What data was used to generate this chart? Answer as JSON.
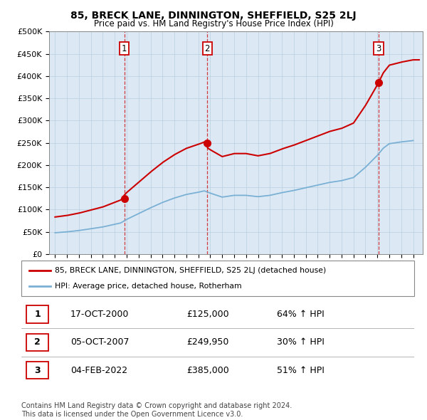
{
  "title": "85, BRECK LANE, DINNINGTON, SHEFFIELD, S25 2LJ",
  "subtitle": "Price paid vs. HM Land Registry's House Price Index (HPI)",
  "ylim": [
    0,
    500000
  ],
  "yticks": [
    0,
    50000,
    100000,
    150000,
    200000,
    250000,
    300000,
    350000,
    400000,
    450000,
    500000
  ],
  "ytick_labels": [
    "£0",
    "£50K",
    "£100K",
    "£150K",
    "£200K",
    "£250K",
    "£300K",
    "£350K",
    "£400K",
    "£450K",
    "£500K"
  ],
  "sale_prices": [
    125000,
    249950,
    385000
  ],
  "sale_labels": [
    "1",
    "2",
    "3"
  ],
  "sale_years": [
    2000.8,
    2007.75,
    2022.1
  ],
  "red_color": "#cc0000",
  "blue_color": "#7ab0d4",
  "legend_label_red": "85, BRECK LANE, DINNINGTON, SHEFFIELD, S25 2LJ (detached house)",
  "legend_label_blue": "HPI: Average price, detached house, Rotherham",
  "footer": "Contains HM Land Registry data © Crown copyright and database right 2024.\nThis data is licensed under the Open Government Licence v3.0.",
  "table_rows": [
    [
      "1",
      "17-OCT-2000",
      "£125,000",
      "64% ↑ HPI"
    ],
    [
      "2",
      "05-OCT-2007",
      "£249,950",
      "30% ↑ HPI"
    ],
    [
      "3",
      "04-FEB-2022",
      "£385,000",
      "51% ↑ HPI"
    ]
  ],
  "hpi_x": [
    1995.0,
    1996.0,
    1997.0,
    1998.0,
    1999.0,
    2000.0,
    2000.5,
    2001.0,
    2002.0,
    2003.0,
    2004.0,
    2005.0,
    2006.0,
    2007.0,
    2007.5,
    2008.0,
    2009.0,
    2010.0,
    2011.0,
    2012.0,
    2013.0,
    2014.0,
    2015.0,
    2016.0,
    2017.0,
    2018.0,
    2019.0,
    2020.0,
    2021.0,
    2022.0,
    2022.5,
    2023.0,
    2024.0,
    2025.0
  ],
  "hpi_y": [
    48000,
    50000,
    53000,
    57000,
    61000,
    67000,
    70000,
    78000,
    91000,
    104000,
    116000,
    126000,
    134000,
    139000,
    142000,
    137000,
    128000,
    132000,
    132000,
    129000,
    132000,
    138000,
    143000,
    149000,
    155000,
    161000,
    165000,
    172000,
    195000,
    222000,
    238000,
    248000,
    252000,
    255000
  ],
  "hpi_at_2000_8": 72000,
  "hpi_at_2007_75": 141000,
  "hpi_at_2022_1": 225000,
  "xmin": 1994.5,
  "xmax": 2025.8,
  "xticks": [
    1995,
    1996,
    1997,
    1998,
    1999,
    2000,
    2001,
    2002,
    2003,
    2004,
    2005,
    2006,
    2007,
    2008,
    2009,
    2010,
    2011,
    2012,
    2013,
    2014,
    2015,
    2016,
    2017,
    2018,
    2019,
    2020,
    2021,
    2022,
    2023,
    2024,
    2025
  ],
  "bg_color": "#dce9f5"
}
